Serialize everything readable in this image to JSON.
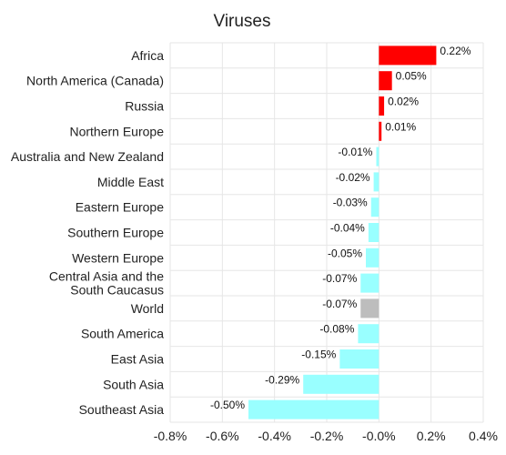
{
  "chart_data": {
    "type": "bar",
    "orientation": "horizontal",
    "title": "Viruses",
    "xlabel": "",
    "ylabel": "",
    "xlim": [
      -0.8,
      0.4
    ],
    "x_ticks": [
      -0.8,
      -0.6,
      -0.4,
      -0.2,
      0.0,
      0.2,
      0.4
    ],
    "x_tick_labels": [
      "-0.8%",
      "-0.6%",
      "-0.4%",
      "-0.2%",
      "-0.0%",
      "0.2%",
      "0.4%"
    ],
    "grid": true,
    "categories": [
      "Africa",
      "North America (Canada)",
      "Russia",
      "Northern Europe",
      "Australia and New Zealand",
      "Middle East",
      "Eastern Europe",
      "Southern Europe",
      "Western Europe",
      "Central Asia and the South Caucasus",
      "World",
      "South America",
      "East Asia",
      "South Asia",
      "Southeast Asia"
    ],
    "category_label_lines": [
      [
        "Africa"
      ],
      [
        "North America (Canada)"
      ],
      [
        "Russia"
      ],
      [
        "Northern Europe"
      ],
      [
        "Australia and New Zealand"
      ],
      [
        "Middle East"
      ],
      [
        "Eastern Europe"
      ],
      [
        "Southern Europe"
      ],
      [
        "Western Europe"
      ],
      [
        "Central Asia and the",
        "South Caucasus"
      ],
      [
        "World"
      ],
      [
        "South America"
      ],
      [
        "East Asia"
      ],
      [
        "South Asia"
      ],
      [
        "Southeast Asia"
      ]
    ],
    "values": [
      0.22,
      0.05,
      0.02,
      0.01,
      -0.01,
      -0.02,
      -0.03,
      -0.04,
      -0.05,
      -0.07,
      -0.07,
      -0.08,
      -0.15,
      -0.29,
      -0.5
    ],
    "value_labels": [
      "0.22%",
      "0.05%",
      "0.02%",
      "0.01%",
      "-0.01%",
      "-0.02%",
      "-0.03%",
      "-0.04%",
      "-0.05%",
      "-0.07%",
      "-0.07%",
      "-0.08%",
      "-0.15%",
      "-0.29%",
      "-0.50%"
    ],
    "colors": {
      "positive": "#ff0000",
      "negative": "#99ffff",
      "highlight": "#bdbdbd",
      "grid": "#e6e6e6"
    },
    "highlight_category": "World"
  }
}
